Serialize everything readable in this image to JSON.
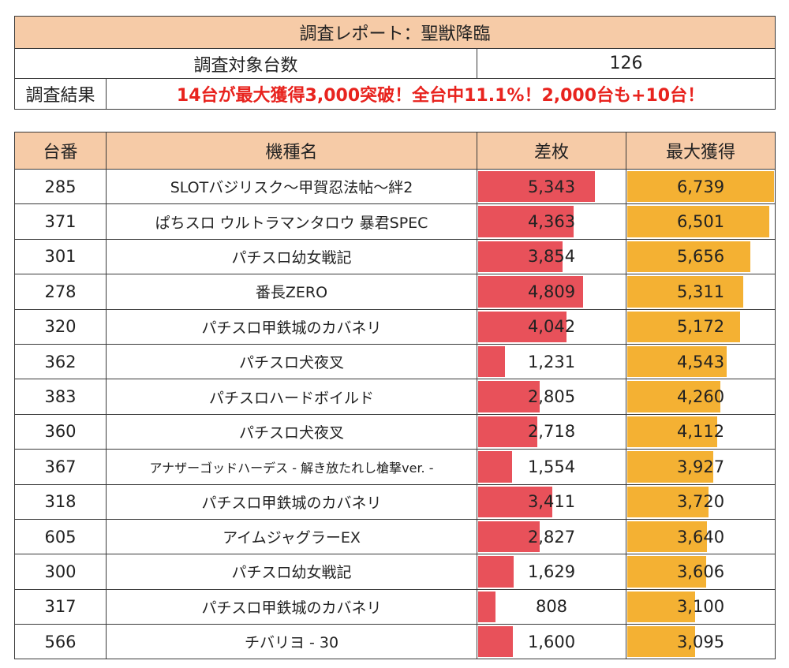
{
  "report": {
    "title": "調査レポート：聖獣降臨",
    "target_label": "調査対象台数",
    "target_value": "126",
    "result_label": "調査結果",
    "result_text": "14台が最大獲得3,000突破！全台中11.1%！2,000台も+10台！"
  },
  "table": {
    "headers": {
      "no": "台番",
      "name": "機種名",
      "diff": "差枚",
      "max": "最大獲得"
    },
    "bar_scale_max": 6800,
    "colors": {
      "diff_bar": "#e8515a",
      "max_bar": "#f4b133",
      "header_bg": "#f6cba7",
      "result_text": "#e8231e"
    },
    "rows": [
      {
        "no": "285",
        "name": "SLOTバジリスク～甲賀忍法帖～絆2",
        "diff": "5,343",
        "diff_value": 5343,
        "max": "6,739",
        "max_value": 6739
      },
      {
        "no": "371",
        "name": "ぱちスロ ウルトラマンタロウ 暴君SPEC",
        "diff": "4,363",
        "diff_value": 4363,
        "max": "6,501",
        "max_value": 6501
      },
      {
        "no": "301",
        "name": "パチスロ幼女戦記",
        "diff": "3,854",
        "diff_value": 3854,
        "max": "5,656",
        "max_value": 5656
      },
      {
        "no": "278",
        "name": "番長ZERO",
        "diff": "4,809",
        "diff_value": 4809,
        "max": "5,311",
        "max_value": 5311
      },
      {
        "no": "320",
        "name": "パチスロ甲鉄城のカバネリ",
        "diff": "4,042",
        "diff_value": 4042,
        "max": "5,172",
        "max_value": 5172
      },
      {
        "no": "362",
        "name": "パチスロ犬夜叉",
        "diff": "1,231",
        "diff_value": 1231,
        "max": "4,543",
        "max_value": 4543
      },
      {
        "no": "383",
        "name": "パチスロハードボイルド",
        "diff": "2,805",
        "diff_value": 2805,
        "max": "4,260",
        "max_value": 4260
      },
      {
        "no": "360",
        "name": "パチスロ犬夜叉",
        "diff": "2,718",
        "diff_value": 2718,
        "max": "4,112",
        "max_value": 4112
      },
      {
        "no": "367",
        "name": "アナザーゴッドハーデス - 解き放たれし槍撃ver. -",
        "diff": "1,554",
        "diff_value": 1554,
        "max": "3,927",
        "max_value": 3927
      },
      {
        "no": "318",
        "name": "パチスロ甲鉄城のカバネリ",
        "diff": "3,411",
        "diff_value": 3411,
        "max": "3,720",
        "max_value": 3720
      },
      {
        "no": "605",
        "name": "アイムジャグラーEX",
        "diff": "2,827",
        "diff_value": 2827,
        "max": "3,640",
        "max_value": 3640
      },
      {
        "no": "300",
        "name": "パチスロ幼女戦記",
        "diff": "1,629",
        "diff_value": 1629,
        "max": "3,606",
        "max_value": 3606
      },
      {
        "no": "317",
        "name": "パチスロ甲鉄城のカバネリ",
        "diff": "808",
        "diff_value": 808,
        "max": "3,100",
        "max_value": 3100
      },
      {
        "no": "566",
        "name": "チバリヨ - 30",
        "diff": "1,600",
        "diff_value": 1600,
        "max": "3,095",
        "max_value": 3095
      }
    ]
  }
}
